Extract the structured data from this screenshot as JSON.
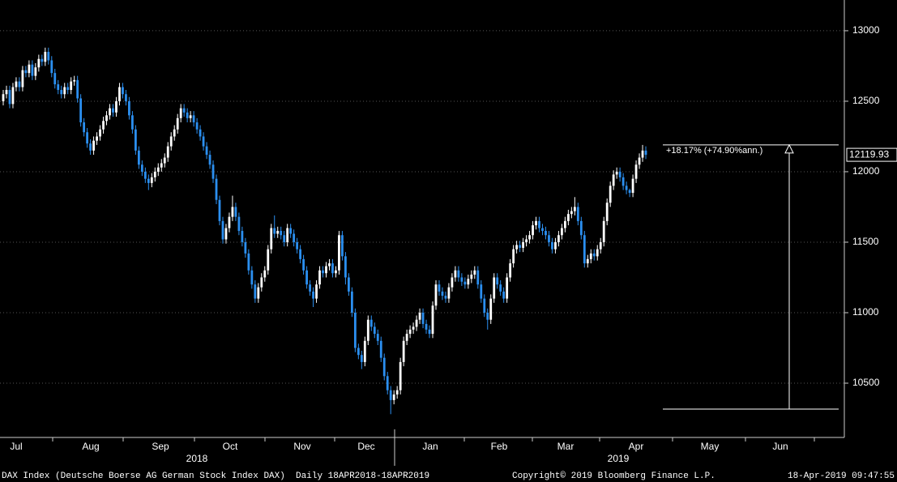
{
  "chart_data": {
    "type": "candlestick",
    "up_color": "#ffffff",
    "down_color": "#2b8ff0",
    "ylim": [
      10115,
      13218
    ],
    "yticks": [
      10500,
      11000,
      11500,
      12000,
      12500,
      13000
    ],
    "grid": true,
    "months": [
      "Jul",
      "Aug",
      "Sep",
      "Oct",
      "Nov",
      "Dec",
      "Jan",
      "Feb",
      "Mar",
      "Apr",
      "May",
      "Jun"
    ],
    "years": [
      "2018",
      "2019"
    ],
    "annotation": "+18.17% (+74.90%ann.)",
    "range_lines": [
      10316,
      12190
    ],
    "open": [
      12500,
      12550,
      12580,
      12480,
      12600,
      12640,
      12600,
      12720,
      12700,
      12760,
      12680,
      12740,
      12800,
      12780,
      12850,
      12790,
      12700,
      12620,
      12580,
      12550,
      12600,
      12580,
      12640,
      12650,
      12520,
      12350,
      12280,
      12200,
      12150,
      12220,
      12250,
      12300,
      12360,
      12400,
      12450,
      12420,
      12500,
      12600,
      12550,
      12500,
      12400,
      12300,
      12150,
      12050,
      12000,
      11950,
      11920,
      11960,
      12000,
      12030,
      12060,
      12100,
      12180,
      12250,
      12300,
      12380,
      12450,
      12420,
      12380,
      12400,
      12350,
      12300,
      12250,
      12180,
      12120,
      12050,
      11950,
      11800,
      11650,
      11520,
      11600,
      11680,
      11750,
      11680,
      11580,
      11500,
      11420,
      11300,
      11200,
      11100,
      11180,
      11250,
      11300,
      11450,
      11600,
      11560,
      11580,
      11550,
      11500,
      11600,
      11560,
      11500,
      11450,
      11380,
      11300,
      11200,
      11150,
      11100,
      11200,
      11300,
      11280,
      11330,
      11350,
      11280,
      11300,
      11550,
      11400,
      11250,
      11150,
      11000,
      10750,
      10700,
      10650,
      10800,
      10950,
      10900,
      10850,
      10800,
      10680,
      10550,
      10450,
      10380,
      10420,
      10450,
      10650,
      10800,
      10850,
      10880,
      10900,
      10950,
      11000,
      10920,
      10880,
      10850,
      11050,
      11200,
      11150,
      11120,
      11100,
      11180,
      11250,
      11300,
      11250,
      11220,
      11200,
      11240,
      11270,
      11300,
      11200,
      11100,
      11000,
      10950,
      11100,
      11250,
      11200,
      11150,
      11100,
      11250,
      11350,
      11450,
      11480,
      11460,
      11500,
      11520,
      11550,
      11620,
      11650,
      11600,
      11580,
      11550,
      11500,
      11450,
      11500,
      11550,
      11600,
      11650,
      11700,
      11720,
      11750,
      11650,
      11550,
      11350,
      11380,
      11420,
      11400,
      11450,
      11500,
      11650,
      11780,
      11900,
      11980,
      12000,
      11960,
      11900,
      11870,
      11850,
      11950,
      12050,
      12100,
      12150
    ],
    "high": [
      12580,
      12610,
      12610,
      12630,
      12670,
      12670,
      12750,
      12750,
      12790,
      12790,
      12770,
      12830,
      12830,
      12880,
      12880,
      12820,
      12730,
      12650,
      12610,
      12630,
      12630,
      12670,
      12680,
      12680,
      12550,
      12380,
      12310,
      12230,
      12250,
      12280,
      12330,
      12390,
      12430,
      12480,
      12480,
      12530,
      12630,
      12630,
      12580,
      12530,
      12430,
      12330,
      12180,
      12080,
      12030,
      11980,
      11990,
      12030,
      12060,
      12090,
      12130,
      12210,
      12280,
      12330,
      12410,
      12480,
      12480,
      12450,
      12430,
      12430,
      12380,
      12330,
      12280,
      12210,
      12150,
      12080,
      11980,
      11830,
      11680,
      11630,
      11710,
      11830,
      11780,
      11710,
      11610,
      11530,
      11450,
      11330,
      11230,
      11210,
      11280,
      11330,
      11480,
      11630,
      11690,
      11610,
      11610,
      11580,
      11630,
      11630,
      11590,
      11530,
      11480,
      11410,
      11330,
      11230,
      11180,
      11230,
      11330,
      11330,
      11360,
      11380,
      11380,
      11330,
      11580,
      11580,
      11430,
      11280,
      11180,
      11030,
      10780,
      10730,
      10830,
      10980,
      10980,
      10930,
      10880,
      10830,
      10710,
      10580,
      10480,
      10450,
      10480,
      10680,
      10830,
      10880,
      10910,
      10930,
      10980,
      11030,
      11030,
      10950,
      10910,
      11080,
      11230,
      11230,
      11180,
      11150,
      11210,
      11280,
      11330,
      11330,
      11280,
      11250,
      11270,
      11300,
      11330,
      11330,
      11230,
      11130,
      11030,
      11130,
      11280,
      11280,
      11230,
      11180,
      11280,
      11380,
      11480,
      11510,
      11510,
      11530,
      11550,
      11580,
      11650,
      11680,
      11680,
      11630,
      11610,
      11580,
      11530,
      11530,
      11580,
      11630,
      11680,
      11730,
      11750,
      11820,
      11780,
      11680,
      11580,
      11410,
      11450,
      11450,
      11480,
      11530,
      11680,
      11810,
      11930,
      12010,
      12030,
      12030,
      11990,
      11930,
      11880,
      11980,
      12080,
      12130,
      12190,
      12180
    ],
    "low": [
      12470,
      12520,
      12450,
      12450,
      12570,
      12570,
      12570,
      12670,
      12670,
      12650,
      12650,
      12710,
      12750,
      12750,
      12760,
      12670,
      12590,
      12550,
      12520,
      12520,
      12550,
      12550,
      12610,
      12490,
      12320,
      12250,
      12170,
      12120,
      12120,
      12190,
      12220,
      12270,
      12330,
      12370,
      12390,
      12390,
      12470,
      12520,
      12470,
      12370,
      12270,
      12120,
      12020,
      11970,
      11920,
      11870,
      11890,
      11930,
      11970,
      12000,
      12030,
      12070,
      12150,
      12220,
      12270,
      12350,
      12390,
      12350,
      12350,
      12320,
      12270,
      12220,
      12150,
      12090,
      12020,
      11920,
      11770,
      11620,
      11490,
      11490,
      11570,
      11650,
      11650,
      11550,
      11470,
      11390,
      11270,
      11170,
      11070,
      11070,
      11150,
      11220,
      11270,
      11420,
      11530,
      11530,
      11520,
      11470,
      11470,
      11530,
      11470,
      11420,
      11350,
      11270,
      11170,
      11120,
      11040,
      11070,
      11170,
      11250,
      11250,
      11300,
      11250,
      11250,
      11270,
      11370,
      11200,
      11120,
      10970,
      10720,
      10670,
      10600,
      10620,
      10770,
      10870,
      10820,
      10770,
      10650,
      10520,
      10420,
      10280,
      10350,
      10390,
      10420,
      10620,
      10770,
      10820,
      10850,
      10870,
      10920,
      10890,
      10850,
      10820,
      10820,
      11020,
      11120,
      11090,
      11070,
      11070,
      11150,
      11220,
      11220,
      11190,
      11170,
      11170,
      11210,
      11240,
      11170,
      11070,
      10970,
      10880,
      10920,
      11070,
      11170,
      11120,
      11070,
      11070,
      11220,
      11320,
      11420,
      11430,
      11430,
      11470,
      11490,
      11520,
      11590,
      11570,
      11550,
      11520,
      11470,
      11420,
      11420,
      11470,
      11520,
      11570,
      11620,
      11670,
      11690,
      11620,
      11520,
      11320,
      11320,
      11350,
      11370,
      11370,
      11420,
      11470,
      11620,
      11750,
      11870,
      11950,
      11930,
      11870,
      11840,
      11820,
      11820,
      11920,
      12020,
      12070,
      12090
    ],
    "close": [
      12550,
      12580,
      12480,
      12600,
      12640,
      12600,
      12720,
      12700,
      12760,
      12680,
      12740,
      12800,
      12780,
      12850,
      12790,
      12700,
      12620,
      12580,
      12550,
      12600,
      12580,
      12640,
      12650,
      12520,
      12350,
      12280,
      12200,
      12150,
      12220,
      12250,
      12300,
      12360,
      12400,
      12450,
      12420,
      12500,
      12600,
      12550,
      12500,
      12400,
      12300,
      12150,
      12050,
      12000,
      11950,
      11920,
      11960,
      12000,
      12030,
      12060,
      12100,
      12180,
      12250,
      12300,
      12380,
      12450,
      12420,
      12380,
      12400,
      12350,
      12300,
      12250,
      12180,
      12120,
      12050,
      11950,
      11800,
      11650,
      11520,
      11600,
      11680,
      11750,
      11680,
      11580,
      11500,
      11420,
      11300,
      11200,
      11100,
      11180,
      11250,
      11300,
      11450,
      11600,
      11560,
      11580,
      11550,
      11500,
      11600,
      11560,
      11500,
      11450,
      11380,
      11300,
      11200,
      11150,
      11100,
      11200,
      11300,
      11280,
      11330,
      11350,
      11280,
      11300,
      11550,
      11400,
      11250,
      11150,
      11000,
      10750,
      10700,
      10650,
      10800,
      10950,
      10900,
      10850,
      10800,
      10680,
      10550,
      10450,
      10380,
      10420,
      10450,
      10650,
      10800,
      10850,
      10880,
      10900,
      10950,
      11000,
      10920,
      10880,
      10850,
      11050,
      11200,
      11150,
      11120,
      11100,
      11180,
      11250,
      11300,
      11250,
      11220,
      11200,
      11240,
      11270,
      11300,
      11200,
      11100,
      11000,
      10950,
      11100,
      11250,
      11200,
      11150,
      11100,
      11250,
      11350,
      11450,
      11480,
      11460,
      11500,
      11520,
      11550,
      11620,
      11650,
      11600,
      11580,
      11550,
      11500,
      11450,
      11500,
      11550,
      11600,
      11650,
      11700,
      11720,
      11750,
      11650,
      11550,
      11350,
      11380,
      11420,
      11400,
      11450,
      11500,
      11650,
      11780,
      11900,
      11980,
      12000,
      11960,
      11900,
      11870,
      11850,
      11950,
      12050,
      12100,
      12150,
      12119.93
    ]
  },
  "footer": {
    "left": "DAX Index (Deutsche Boerse AG German Stock Index DAX)  Daily 18APR2018-18APR2019",
    "center": "Copyright© 2019 Bloomberg Finance L.P.",
    "right": "18-Apr-2019 09:47:55"
  }
}
